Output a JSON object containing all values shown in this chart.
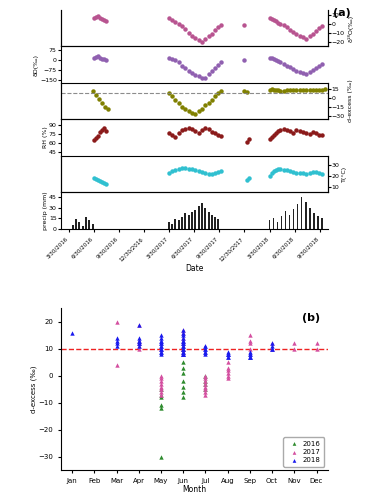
{
  "panel_a_label": "(a)",
  "panel_b_label": "(b)",
  "date_ticks": [
    "3/30/2016",
    "6/30/2016",
    "9/30/2016",
    "12/30/2016",
    "3/30/2017",
    "6/30/2017",
    "9/30/2017",
    "12/30/2017",
    "3/30/2018",
    "6/30/2018",
    "9/30/2018"
  ],
  "date_xlabel": "Date",
  "d18O_color": "#b85490",
  "dD_color": "#9060b0",
  "dexcess_color": "#808000",
  "RH_color": "#8b1a1a",
  "T_color": "#30c0d0",
  "precip_color": "#222222",
  "d18O_yticks": [
    10,
    0,
    -10,
    -20
  ],
  "d18O_ylabel": "δ¹⁸O(‰)",
  "dD_yticks": [
    75,
    0,
    -75,
    -150
  ],
  "dD_ylabel": "δD(‰)",
  "dexcess_yticks": [
    15,
    0,
    -15,
    -30
  ],
  "dexcess_ylabel": "d-excess (‰)",
  "RH_yticks": [
    45,
    60,
    75,
    90
  ],
  "RH_ylabel": "RH (%)",
  "T_yticks": [
    10,
    20,
    30
  ],
  "T_ylabel": "T(°C)",
  "precip_yticks": [
    0,
    15,
    30,
    45
  ],
  "precip_ylabel": "precip (mm)",
  "month_labels": [
    "Jan",
    "Feb",
    "Mar",
    "Apr",
    "May",
    "Jun",
    "Jul",
    "Aug",
    "Sep",
    "Oct",
    "Nov",
    "Dec"
  ],
  "month_xlabel": "Month",
  "dexcess_b_ylabel": "d-excess (‰)",
  "global_avg_dexcess": 10,
  "dashed_red_color": "#ee2222",
  "color_2016": "#2e8b2e",
  "color_2017": "#d44fa0",
  "color_2018": "#1a1aee",
  "legend_labels": [
    "2016",
    "2017",
    "2018"
  ],
  "xlim": [
    -0.08,
    2.58
  ],
  "date_tick_pos": [
    0.0,
    0.25,
    0.5,
    0.75,
    1.0,
    1.25,
    1.5,
    1.75,
    2.0,
    2.25,
    2.5
  ],
  "d18O_data": {
    "x": [
      0.25,
      0.27,
      0.29,
      0.31,
      0.33,
      0.35,
      0.37,
      1.0,
      1.03,
      1.06,
      1.1,
      1.13,
      1.16,
      1.2,
      1.23,
      1.26,
      1.3,
      1.33,
      1.36,
      1.4,
      1.43,
      1.46,
      1.49,
      1.52,
      1.75,
      2.0,
      2.02,
      2.04,
      2.06,
      2.08,
      2.1,
      2.14,
      2.17,
      2.2,
      2.23,
      2.26,
      2.3,
      2.33,
      2.36,
      2.4,
      2.43,
      2.46,
      2.49,
      2.52
    ],
    "y": [
      6,
      7,
      8,
      6,
      5,
      4,
      3,
      6,
      4,
      2,
      0,
      -3,
      -6,
      -10,
      -13,
      -16,
      -18,
      -20,
      -17,
      -14,
      -11,
      -7,
      -4,
      -2,
      -2,
      6,
      5,
      4,
      3,
      1,
      0,
      -2,
      -4,
      -7,
      -9,
      -11,
      -13,
      -15,
      -17,
      -14,
      -11,
      -8,
      -5,
      -3
    ]
  },
  "dD_data": {
    "x": [
      0.25,
      0.27,
      0.29,
      0.31,
      0.33,
      0.35,
      0.37,
      1.0,
      1.03,
      1.06,
      1.1,
      1.13,
      1.16,
      1.2,
      1.23,
      1.26,
      1.3,
      1.33,
      1.36,
      1.4,
      1.43,
      1.46,
      1.49,
      1.52,
      1.75,
      2.0,
      2.02,
      2.04,
      2.06,
      2.08,
      2.1,
      2.14,
      2.17,
      2.2,
      2.23,
      2.26,
      2.3,
      2.33,
      2.36,
      2.4,
      2.43,
      2.46,
      2.49,
      2.52
    ],
    "y": [
      15,
      20,
      25,
      15,
      8,
      3,
      -2,
      15,
      8,
      -5,
      -20,
      -45,
      -65,
      -85,
      -100,
      -115,
      -125,
      -135,
      -140,
      -110,
      -85,
      -60,
      -40,
      -20,
      -5,
      15,
      10,
      5,
      -3,
      -10,
      -20,
      -30,
      -45,
      -58,
      -70,
      -82,
      -93,
      -100,
      -108,
      -90,
      -75,
      -60,
      -45,
      -30
    ]
  },
  "dexcess_data": {
    "x": [
      0.24,
      0.27,
      0.3,
      0.33,
      0.36,
      0.39,
      1.0,
      1.03,
      1.06,
      1.1,
      1.13,
      1.16,
      1.2,
      1.23,
      1.26,
      1.3,
      1.33,
      1.36,
      1.4,
      1.43,
      1.46,
      1.49,
      1.52,
      1.75,
      1.78,
      2.0,
      2.02,
      2.04,
      2.06,
      2.08,
      2.1,
      2.14,
      2.17,
      2.2,
      2.23,
      2.26,
      2.3,
      2.33,
      2.36,
      2.4,
      2.43,
      2.46,
      2.49,
      2.52,
      2.55
    ],
    "y": [
      12,
      5,
      -2,
      -8,
      -14,
      -18,
      8,
      3,
      -3,
      -8,
      -14,
      -18,
      -22,
      -25,
      -26,
      -22,
      -18,
      -12,
      -8,
      -3,
      3,
      8,
      12,
      12,
      10,
      14,
      15,
      14,
      13,
      13,
      12,
      12,
      13,
      13,
      14,
      14,
      13,
      14,
      14,
      13,
      14,
      13,
      14,
      14,
      15
    ]
  },
  "RH_data": {
    "x": [
      0.25,
      0.27,
      0.29,
      0.31,
      0.33,
      0.35,
      0.37,
      1.0,
      1.03,
      1.06,
      1.1,
      1.13,
      1.16,
      1.2,
      1.23,
      1.26,
      1.3,
      1.33,
      1.36,
      1.4,
      1.43,
      1.46,
      1.49,
      1.52,
      1.78,
      1.8,
      2.0,
      2.02,
      2.04,
      2.06,
      2.08,
      2.1,
      2.14,
      2.17,
      2.2,
      2.23,
      2.26,
      2.3,
      2.33,
      2.36,
      2.4,
      2.43,
      2.46,
      2.49,
      2.52
    ],
    "y": [
      65,
      68,
      72,
      78,
      82,
      85,
      80,
      76,
      74,
      70,
      77,
      82,
      84,
      85,
      83,
      80,
      77,
      82,
      85,
      83,
      79,
      76,
      74,
      71,
      62,
      67,
      67,
      70,
      73,
      77,
      80,
      82,
      84,
      82,
      80,
      77,
      82,
      80,
      78,
      76,
      75,
      78,
      76,
      74,
      73
    ]
  },
  "T_data": {
    "x": [
      0.25,
      0.27,
      0.29,
      0.31,
      0.33,
      0.35,
      0.37,
      1.0,
      1.03,
      1.06,
      1.1,
      1.13,
      1.16,
      1.2,
      1.23,
      1.26,
      1.3,
      1.33,
      1.36,
      1.4,
      1.43,
      1.46,
      1.49,
      1.52,
      1.78,
      1.8,
      2.0,
      2.02,
      2.04,
      2.06,
      2.08,
      2.1,
      2.14,
      2.17,
      2.2,
      2.23,
      2.26,
      2.3,
      2.33,
      2.36,
      2.4,
      2.43,
      2.46,
      2.49,
      2.52
    ],
    "y": [
      18,
      17,
      16,
      15,
      14,
      13,
      12,
      22,
      24,
      25,
      26,
      27,
      27,
      26,
      26,
      25,
      24,
      23,
      22,
      21,
      21,
      22,
      23,
      24,
      16,
      18,
      20,
      22,
      24,
      25,
      26,
      26,
      25,
      25,
      24,
      23,
      22,
      22,
      22,
      21,
      22,
      23,
      23,
      22,
      21
    ]
  },
  "precip_data": {
    "x": [
      0.04,
      0.07,
      0.1,
      0.14,
      0.17,
      0.2,
      0.24,
      1.0,
      1.03,
      1.06,
      1.1,
      1.13,
      1.16,
      1.2,
      1.23,
      1.26,
      1.3,
      1.33,
      1.36,
      1.4,
      1.43,
      1.46,
      1.49,
      2.0,
      2.04,
      2.08,
      2.12,
      2.16,
      2.2,
      2.24,
      2.28,
      2.32,
      2.36,
      2.4,
      2.44,
      2.48,
      2.52
    ],
    "y": [
      5,
      13,
      10,
      4,
      16,
      12,
      7,
      10,
      7,
      14,
      12,
      17,
      22,
      20,
      24,
      27,
      32,
      36,
      30,
      24,
      20,
      17,
      14,
      12,
      15,
      10,
      18,
      25,
      20,
      28,
      35,
      45,
      38,
      30,
      22,
      18,
      15
    ]
  },
  "b_2016": {
    "months": [
      5,
      5,
      5,
      5,
      5,
      5,
      6,
      6,
      6,
      6,
      6,
      6,
      6,
      6,
      7,
      7,
      7,
      7
    ],
    "values": [
      -30,
      -12,
      -11,
      -8,
      -7,
      -5,
      10,
      5,
      3,
      1,
      -2,
      -4,
      -6,
      -8,
      -5,
      -3,
      -2,
      0
    ]
  },
  "b_2017": {
    "months": [
      3,
      3,
      4,
      4,
      4,
      4,
      4,
      5,
      5,
      5,
      5,
      5,
      5,
      5,
      5,
      5,
      6,
      6,
      6,
      6,
      6,
      6,
      6,
      6,
      6,
      6,
      7,
      7,
      7,
      7,
      7,
      7,
      7,
      7,
      8,
      8,
      8,
      8,
      8,
      8,
      9,
      9,
      9,
      9,
      10,
      10,
      11,
      11,
      12,
      12
    ],
    "values": [
      4,
      20,
      19,
      13,
      12,
      11,
      10,
      -7,
      -6,
      -5,
      -4,
      -3,
      -2,
      -1,
      0,
      10,
      17,
      16,
      14,
      13,
      12,
      11,
      10,
      10,
      9,
      8,
      -7,
      -6,
      -5,
      -4,
      -3,
      -2,
      -1,
      0,
      -1,
      0,
      1,
      2,
      3,
      5,
      15,
      13,
      10,
      12,
      10,
      12,
      10,
      12,
      10,
      12
    ]
  },
  "b_2018": {
    "months": [
      1,
      3,
      3,
      3,
      3,
      4,
      4,
      4,
      4,
      4,
      4,
      4,
      5,
      5,
      5,
      5,
      5,
      5,
      5,
      5,
      5,
      5,
      5,
      5,
      5,
      6,
      6,
      6,
      6,
      6,
      6,
      6,
      6,
      6,
      6,
      6,
      6,
      6,
      6,
      6,
      6,
      6,
      7,
      7,
      7,
      7,
      7,
      7,
      7,
      8,
      8,
      8,
      8,
      8,
      8,
      9,
      9,
      9,
      9,
      9,
      9,
      10,
      10,
      10,
      10
    ],
    "values": [
      16,
      14,
      13,
      12,
      11,
      19,
      14,
      13,
      13,
      12,
      12,
      11,
      15,
      14,
      13,
      13,
      12,
      12,
      11,
      11,
      10,
      10,
      9,
      9,
      8,
      17,
      16,
      15,
      14,
      13,
      13,
      12,
      12,
      11,
      11,
      10,
      10,
      9,
      9,
      8,
      8,
      8,
      11,
      11,
      10,
      10,
      9,
      9,
      8,
      8,
      9,
      8,
      8,
      7,
      7,
      9,
      8,
      8,
      7,
      7,
      7,
      10,
      11,
      12,
      10
    ]
  }
}
